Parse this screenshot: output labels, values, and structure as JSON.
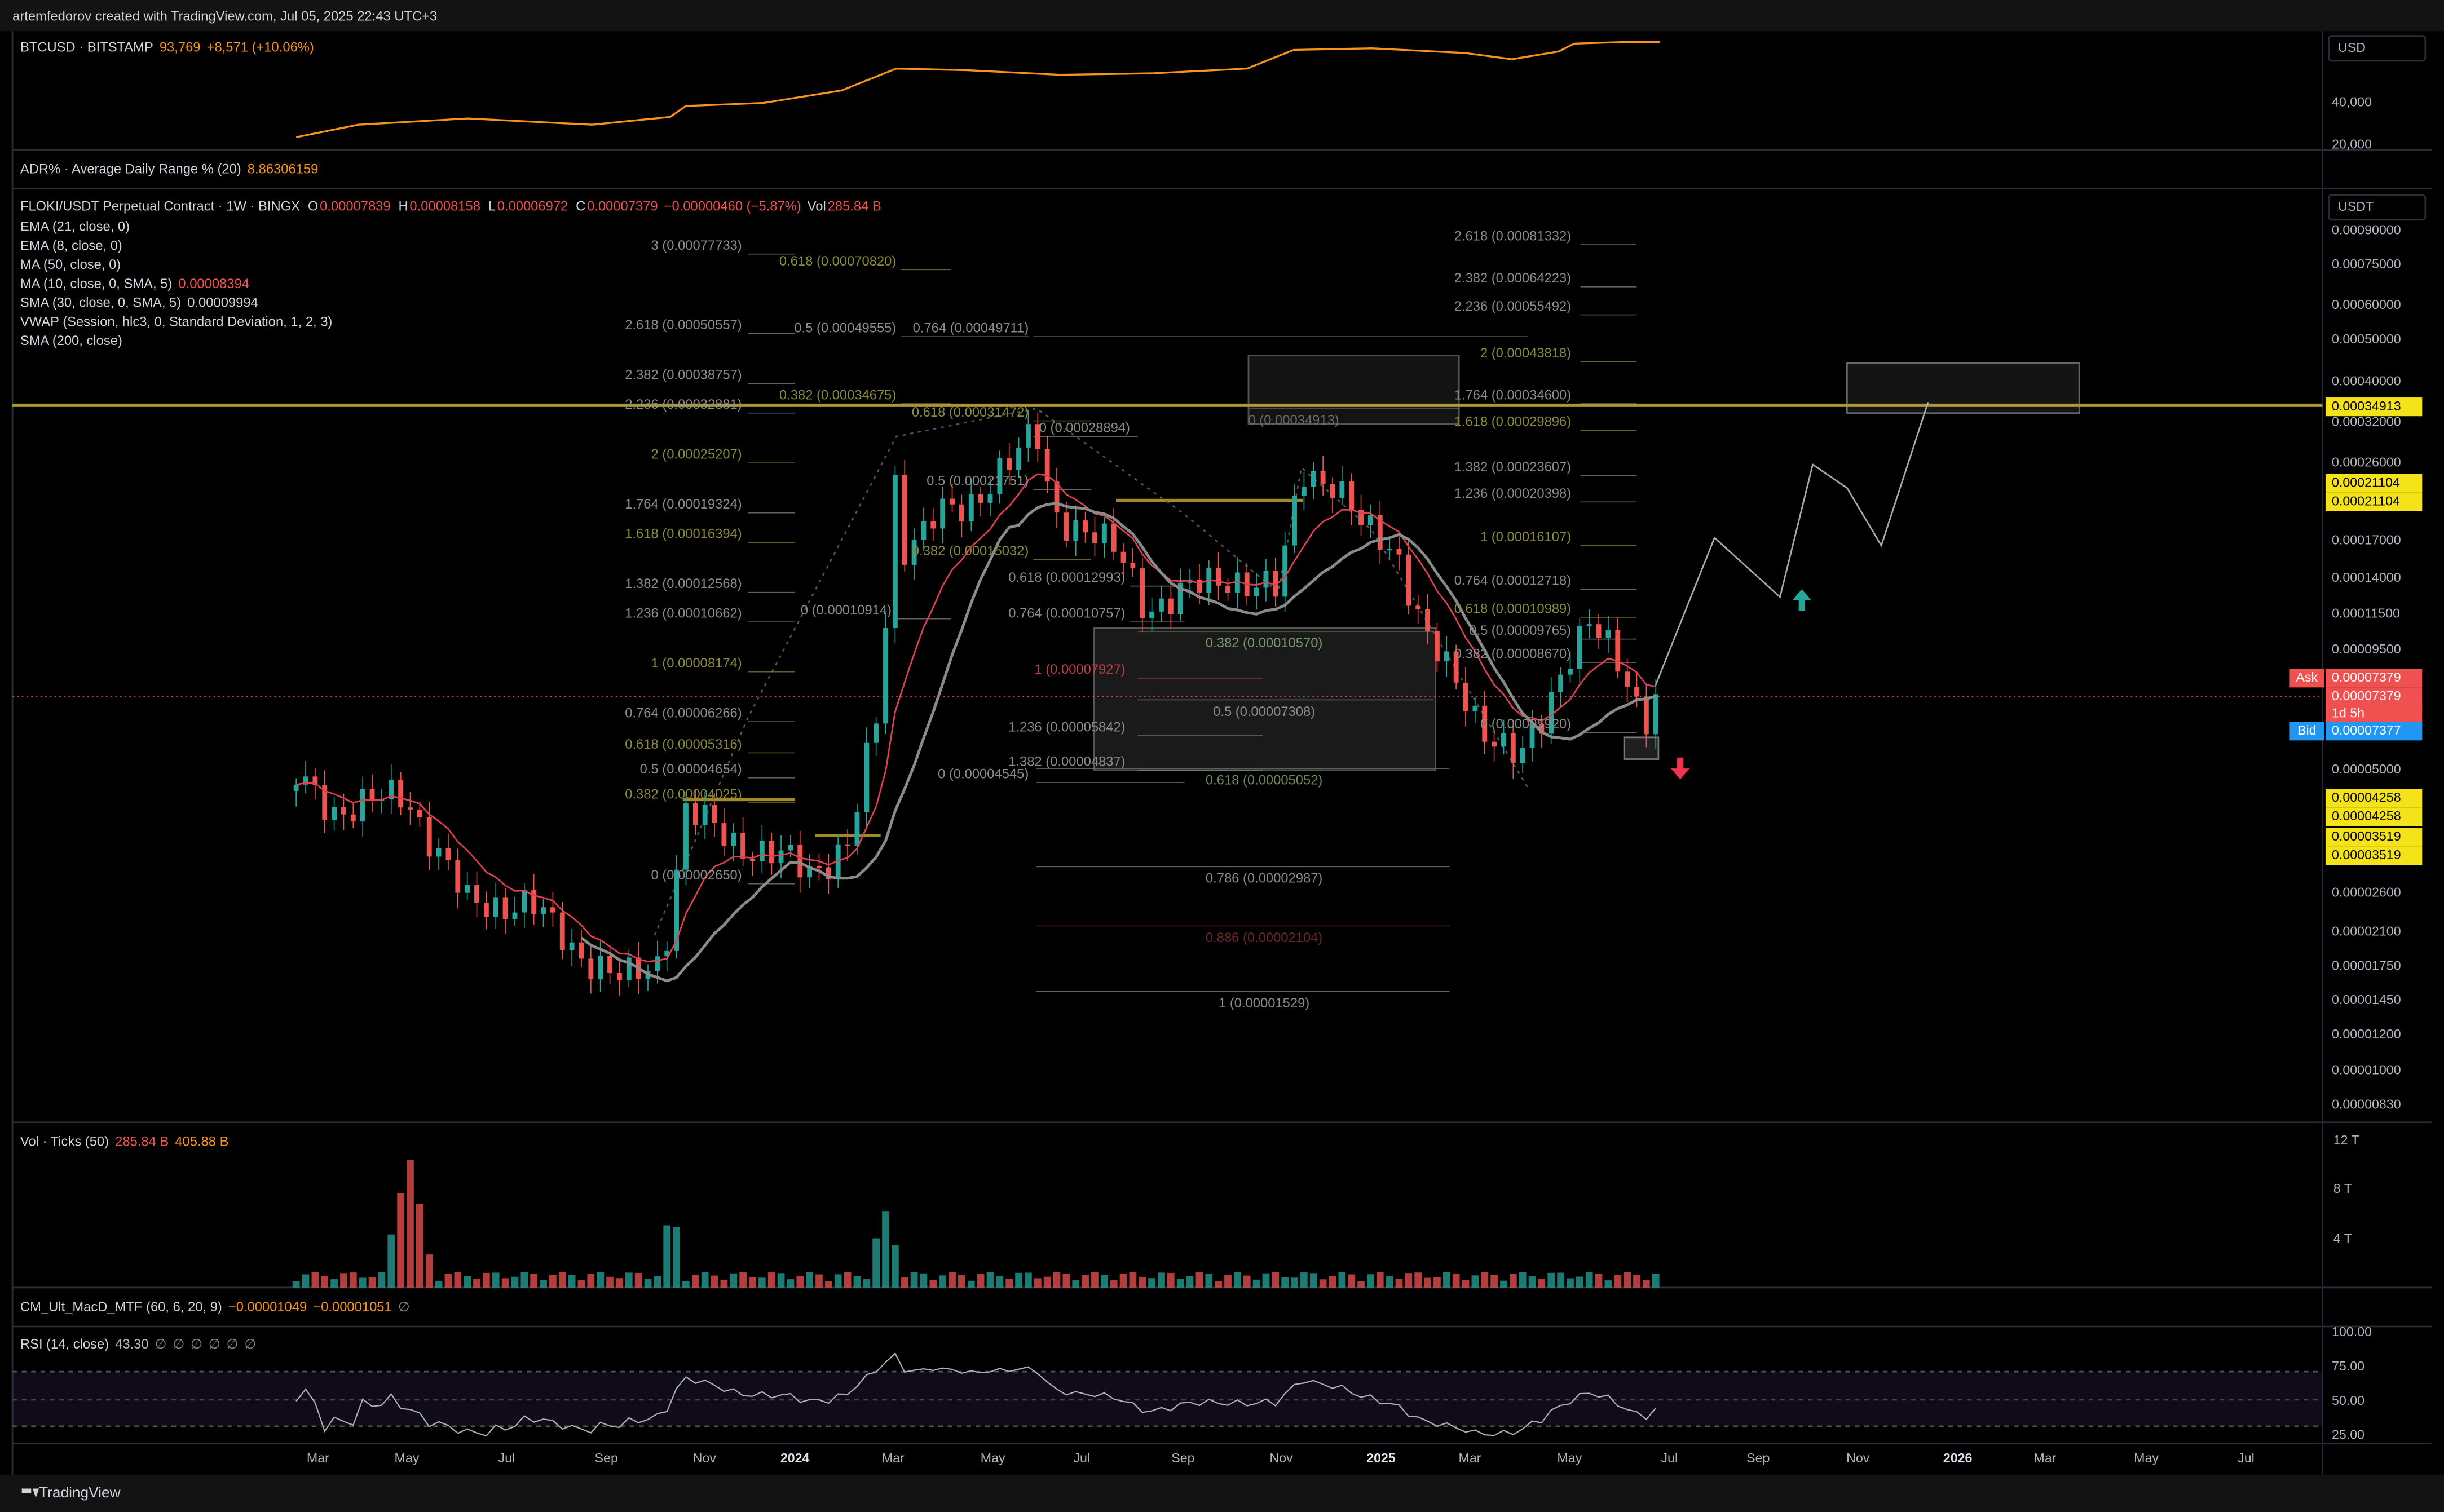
{
  "header": {
    "credit": "artemfedorov created with TradingView.com, Jul 05, 2025 22:43 UTC+3"
  },
  "btc_pane": {
    "symbol": "BTCUSD · BITSTAMP",
    "price": "93,769",
    "change": "+8,571 (+10.06%)",
    "unit": "USD",
    "axis_labels": [
      "40,000",
      "20,000"
    ]
  },
  "adr_pane": {
    "name": "ADR% · Average Daily Range % (20)",
    "value": "8.86306159"
  },
  "main_pane": {
    "symbol": "FLOKI/USDT Perpetual Contract · 1W · BINGX",
    "ohlc": [
      {
        "key": "O",
        "value": "0.00007839"
      },
      {
        "key": "H",
        "value": "0.00008158"
      },
      {
        "key": "L",
        "value": "0.00006972"
      },
      {
        "key": "C",
        "value": "0.00007379"
      }
    ],
    "change": "−0.00000460 (−5.87%)",
    "volume_key": "Vol",
    "volume": "285.84 B",
    "indicators": [
      {
        "name": "EMA (21, close, 0)"
      },
      {
        "name": "EMA (8, close, 0)"
      },
      {
        "name": "MA (50, close, 0)"
      },
      {
        "name": "MA (10, close, 0, SMA, 5)",
        "value": "0.00008394"
      },
      {
        "name": "SMA (30, close, 0, SMA, 5)",
        "value": "0.00009994"
      },
      {
        "name": "VWAP (Session, hlc3, 0, Standard Deviation, 1, 2, 3)"
      },
      {
        "name": "SMA (200, close)"
      }
    ],
    "unit": "USDT",
    "axis_labels": [
      "0.00090000",
      "0.00075000",
      "0.00060000",
      "0.00050000",
      "0.00040000",
      "0.00032000",
      "0.00026000",
      "0.00017000",
      "0.00014000",
      "0.00011500",
      "0.00009500",
      "0.00005000",
      "0.00002600",
      "0.00002100",
      "0.00001750",
      "0.00001450",
      "0.00001200",
      "0.00001000",
      "0.00000830"
    ],
    "badges": [
      {
        "text": "0.00034913"
      },
      {
        "text": "0.00021104"
      },
      {
        "text": "0.00021104"
      },
      {
        "label": "Ask",
        "text": "0.00007379"
      },
      {
        "text": "0.00007379"
      },
      {
        "text": "1d 5h"
      },
      {
        "label": "Bid",
        "text": "0.00007377"
      },
      {
        "text": "0.00004258"
      },
      {
        "text": "0.00004258"
      },
      {
        "text": "0.00003519"
      },
      {
        "text": "0.00003519"
      }
    ],
    "fib_labels": [
      "3 (0.00077733)",
      "2.618 (0.00050557)",
      "2.382 (0.00038757)",
      "2.236 (0.00032881)",
      "2 (0.00025207)",
      "1.764 (0.00019324)",
      "1.618 (0.00016394)",
      "1.382 (0.00012568)",
      "1.236 (0.00010662)",
      "1 (0.00008174)",
      "0.764 (0.00006266)",
      "0.618 (0.00005316)",
      "0.5 (0.00004654)",
      "0.382 (0.00004025)",
      "0 (0.00002650)",
      "0.618 (0.00070820)",
      "0.5 (0.00049555)",
      "0.764 (0.00049711)",
      "0.382 (0.00034675)",
      "0.618 (0.00031472)",
      "0 (0.00028894)",
      "0.5 (0.00021751)",
      "0.382 (0.00015032)",
      "0.618 (0.00012993)",
      "0 (0.00010914)",
      "0.764 (0.00010757)",
      "1 (0.00007927)",
      "1.236 (0.00005842)",
      "1.382 (0.00004837)",
      "0 (0.00004545)",
      "0.382 (0.00010570)",
      "0.5 (0.00007308)",
      "0.618 (0.00005052)",
      "0.786 (0.00002987)",
      "0.886 (0.00002104)",
      "1 (0.00001529)",
      "2.618 (0.00081332)",
      "2.382 (0.00064223)",
      "2.236 (0.00055492)",
      "2 (0.00043818)",
      "1.764 (0.00034600)",
      "1.618 (0.00029896)",
      "1.382 (0.00023607)",
      "1.236 (0.00020398)",
      "1 (0.00016107)",
      "0.764 (0.00012718)",
      "0.618 (0.00010989)",
      "0.5 (0.00009765)",
      "0.382 (0.00008670)",
      "0 (0.00005920)",
      "0 (0.00034913)"
    ]
  },
  "volume_pane": {
    "name": "Vol · Ticks (50)",
    "values": [
      "285.84 B",
      "405.88 B"
    ],
    "axis_labels": [
      "12 T",
      "8 T",
      "4 T"
    ]
  },
  "macd_pane": {
    "name": "CM_Ult_MacD_MTF (60, 6, 20, 9)",
    "values": [
      "−0.00001049",
      "−0.00001051",
      "∅"
    ]
  },
  "rsi_pane": {
    "name": "RSI (14, close)",
    "values": [
      "43.30",
      "∅",
      "∅",
      "∅",
      "∅",
      "∅",
      "∅"
    ],
    "axis_labels": [
      "100.00",
      "75.00",
      "50.00",
      "25.00"
    ]
  },
  "time_axis": [
    "Mar",
    "May",
    "Jul",
    "Sep",
    "Nov",
    "2024",
    "Mar",
    "May",
    "Jul",
    "Sep",
    "Nov",
    "2025",
    "Mar",
    "May",
    "Jul",
    "Sep",
    "Nov",
    "2026",
    "Mar",
    "May",
    "Jul"
  ],
  "footer": {
    "brand": "TradingView"
  }
}
